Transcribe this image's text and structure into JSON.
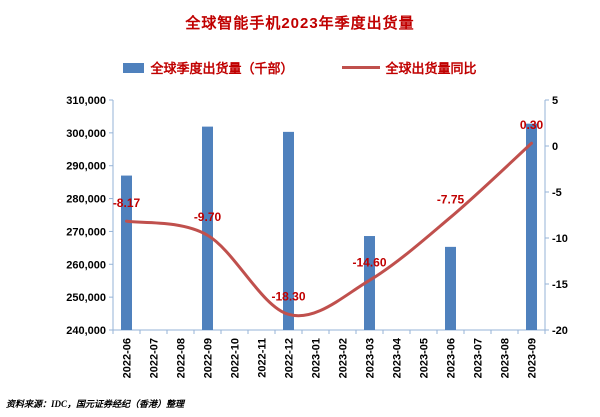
{
  "title": "全球智能手机2023年季度出货量",
  "source_note": "资料来源：IDC，国元证券经纪（香港）整理",
  "legend": {
    "bar_label": "全球季度出货量（千部）",
    "line_label": "全球出货量同比"
  },
  "colors": {
    "title": "#C00000",
    "bar": "#4F81BD",
    "line": "#C0504D",
    "data_label": "#C00000",
    "axis": "#95B3D7",
    "legend_text": "#C00000",
    "tick_text": "#000000"
  },
  "chart_data": {
    "type": "combo",
    "title": "全球智能手机2023年季度出货量",
    "legend_position": "top",
    "grid": false,
    "categories": [
      "2022-06",
      "2022-07",
      "2022-08",
      "2022-09",
      "2022-10",
      "2022-11",
      "2022-12",
      "2023-01",
      "2023-02",
      "2023-03",
      "2023-04",
      "2023-05",
      "2023-06",
      "2023-07",
      "2023-08",
      "2023-09"
    ],
    "series": [
      {
        "name": "全球季度出货量（千部）",
        "type": "bar",
        "axis": "left",
        "points": [
          {
            "category": "2022-06",
            "value": 287000
          },
          {
            "category": "2022-09",
            "value": 301900
          },
          {
            "category": "2022-12",
            "value": 300300
          },
          {
            "category": "2023-03",
            "value": 268600
          },
          {
            "category": "2023-06",
            "value": 265300
          },
          {
            "category": "2023-09",
            "value": 302800
          }
        ]
      },
      {
        "name": "全球出货量同比",
        "type": "line",
        "axis": "right",
        "points": [
          {
            "category": "2022-06",
            "value": -8.17,
            "label": "-8.17"
          },
          {
            "category": "2022-09",
            "value": -9.7,
            "label": "-9.70"
          },
          {
            "category": "2022-12",
            "value": -18.3,
            "label": "-18.30"
          },
          {
            "category": "2023-03",
            "value": -14.6,
            "label": "-14.60"
          },
          {
            "category": "2023-06",
            "value": -7.75,
            "label": "-7.75"
          },
          {
            "category": "2023-09",
            "value": 0.3,
            "label": "0.30"
          }
        ]
      }
    ],
    "left_axis": {
      "min": 240000,
      "max": 310000,
      "step": 10000,
      "tick_labels": [
        "310,000",
        "300,000",
        "290,000",
        "280,000",
        "270,000",
        "260,000",
        "250,000",
        "240,000"
      ]
    },
    "right_axis": {
      "min": -20,
      "max": 5,
      "step": 5,
      "tick_labels": [
        "5",
        "0",
        "-5",
        "-10",
        "-15",
        "-20"
      ]
    }
  }
}
